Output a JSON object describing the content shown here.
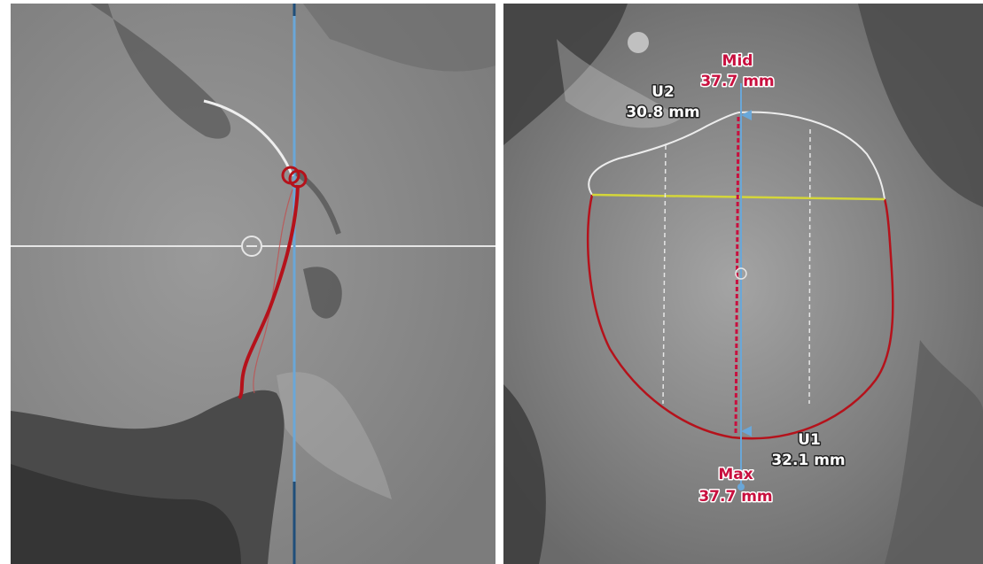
{
  "left_view": {
    "name": "sagittal-view"
  },
  "right_view": {
    "name": "annulus-view",
    "measurements": {
      "mid_label": "Mid",
      "mid_value": "37.7 mm",
      "u2_label": "U2",
      "u2_value": "30.8 mm",
      "u1_label": "U1",
      "u1_value": "32.1 mm",
      "max_label": "Max",
      "max_value": "37.7 mm"
    }
  },
  "colors": {
    "crosshair_blue": "#6aa7d8",
    "contour_red": "#b5121b",
    "contour_white": "#e8e8e8",
    "baseline_yellow": "#d4d63a",
    "label_red": "#c8103f"
  }
}
